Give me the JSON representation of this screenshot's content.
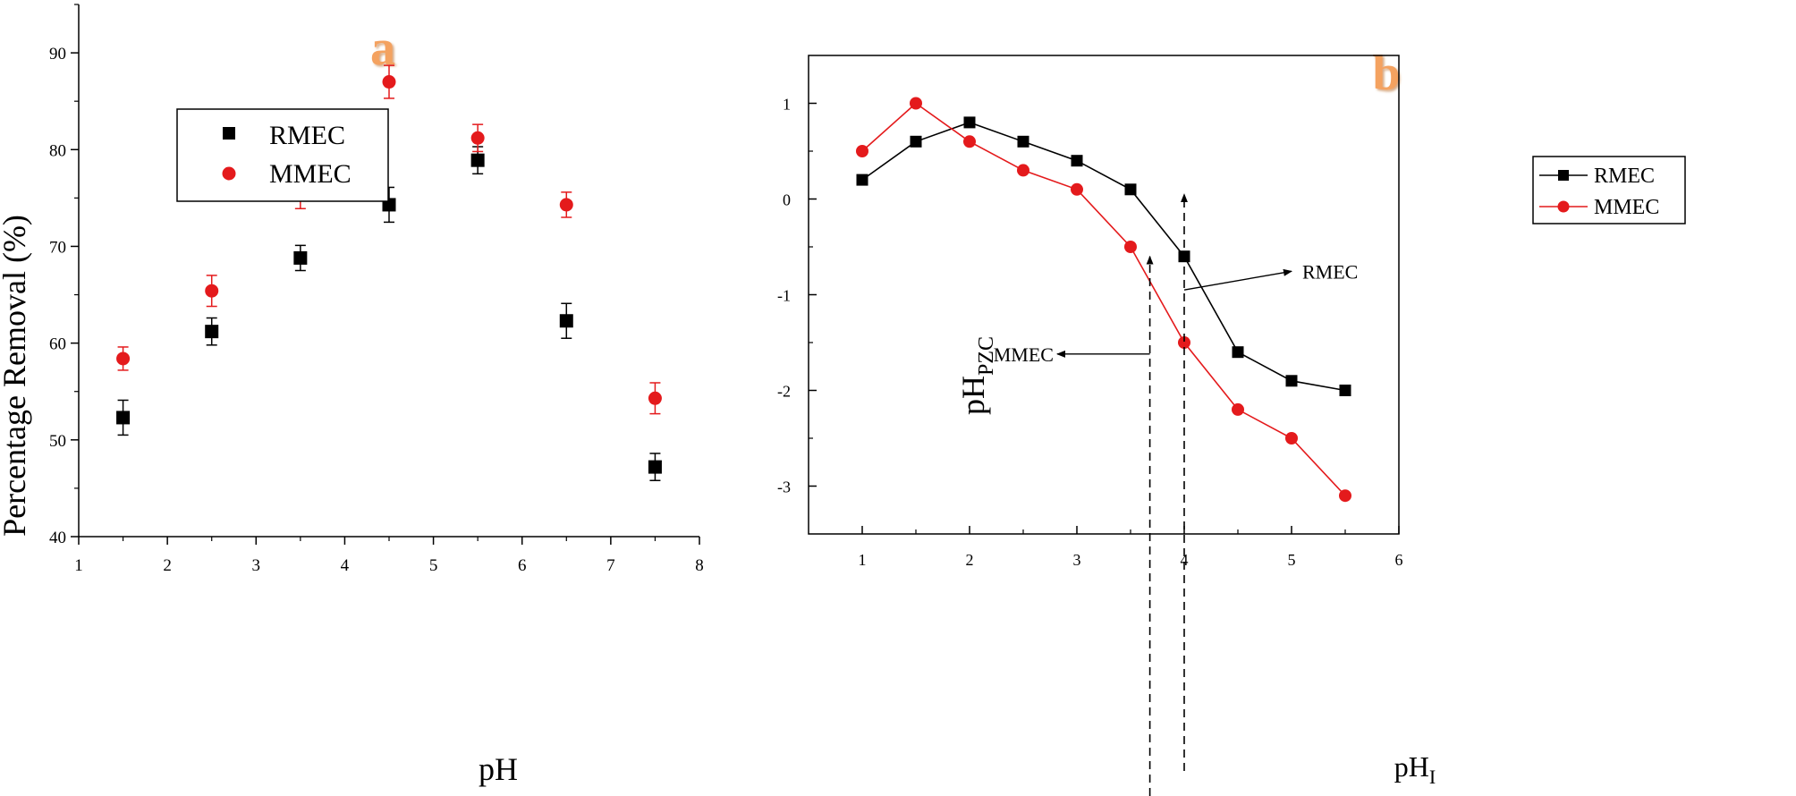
{
  "chart_data": [
    {
      "panel": "a",
      "type": "scatter",
      "title": "",
      "xlabel": "pH",
      "ylabel": "Percentage Removal (%)",
      "xlim": [
        1,
        8
      ],
      "ylim": [
        40,
        95
      ],
      "x_ticks": [
        1,
        2,
        3,
        4,
        5,
        6,
        7,
        8
      ],
      "y_ticks": [
        40,
        50,
        60,
        70,
        80,
        90
      ],
      "grid": false,
      "legend_position": "top-left",
      "series": [
        {
          "name": "RMEC",
          "color": "#000000",
          "marker": "square",
          "x": [
            1.5,
            2.5,
            3.5,
            4.5,
            5.5,
            6.5,
            7.5
          ],
          "y": [
            52.3,
            61.2,
            68.8,
            74.3,
            78.9,
            62.3,
            47.2
          ],
          "err": [
            1.8,
            1.4,
            1.3,
            1.8,
            1.4,
            1.8,
            1.4
          ]
        },
        {
          "name": "MMEC",
          "color": "#e41a1c",
          "marker": "circle",
          "x": [
            1.5,
            2.5,
            3.5,
            4.5,
            5.5,
            6.5,
            7.5
          ],
          "y": [
            58.4,
            65.4,
            75.3,
            87.0,
            81.2,
            74.3,
            54.3
          ],
          "err": [
            1.2,
            1.6,
            1.4,
            1.7,
            1.4,
            1.3,
            1.6
          ]
        }
      ]
    },
    {
      "panel": "b",
      "type": "line",
      "title": "",
      "xlabel": "pH",
      "xlabel_sub": "I",
      "ylabel": "pH",
      "ylabel_sub": "PZC",
      "xlim": [
        0.5,
        6
      ],
      "ylim": [
        -3.5,
        1.5
      ],
      "x_ticks": [
        1,
        2,
        3,
        4,
        5,
        6
      ],
      "y_ticks": [
        -3,
        -2,
        -1,
        0,
        1
      ],
      "grid": false,
      "legend_position": "top-right",
      "series": [
        {
          "name": "RMEC",
          "color": "#000000",
          "marker": "square",
          "x": [
            1,
            1.5,
            2,
            2.5,
            3,
            3.5,
            4,
            4.5,
            5,
            5.5
          ],
          "y": [
            0.2,
            0.6,
            0.8,
            0.6,
            0.4,
            0.1,
            -0.6,
            -1.6,
            -1.9,
            -2.0
          ]
        },
        {
          "name": "MMEC",
          "color": "#e41a1c",
          "marker": "circle",
          "x": [
            1,
            1.5,
            2,
            2.5,
            3,
            3.5,
            4,
            4.5,
            5,
            5.5
          ],
          "y": [
            0.5,
            1.0,
            0.6,
            0.3,
            0.1,
            -0.5,
            -1.5,
            -2.2,
            -2.5,
            -3.1
          ]
        }
      ],
      "annotations": [
        {
          "text": "RMEC",
          "x_at": 4.0,
          "label_x": 5.1,
          "label_y": -0.83
        },
        {
          "text": "MMEC",
          "x_at": 3.68,
          "label_x": 2.7,
          "label_y": -1.62
        }
      ]
    }
  ],
  "panel_labels": [
    "a",
    "b"
  ],
  "label_color": "#f4a261"
}
